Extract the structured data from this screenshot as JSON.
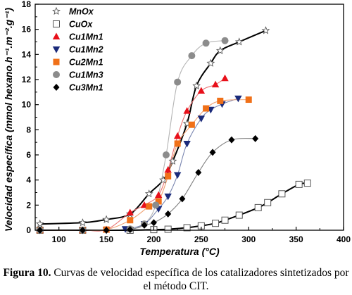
{
  "chart_data": {
    "type": "line",
    "xlabel": "Temperatura (°C)",
    "ylabel": "Velocidad específica (mmol hexano.h⁻¹.m⁻².g⁻¹)",
    "xlim": [
      75,
      400
    ],
    "ylim": [
      0,
      18
    ],
    "xticks": [
      100,
      150,
      200,
      250,
      300,
      350,
      400
    ],
    "yticks": [
      0,
      2,
      4,
      6,
      8,
      10,
      12,
      14,
      16,
      18
    ],
    "legend_position": "top-left",
    "grid": false,
    "series": [
      {
        "name": "MnOx",
        "marker": "star-open",
        "color": "#555555",
        "line": "#000000",
        "points": [
          [
            80,
            0.5
          ],
          [
            125,
            0.6
          ],
          [
            150,
            0.85
          ],
          [
            175,
            1.3
          ],
          [
            195,
            2.9
          ],
          [
            210,
            4.0
          ],
          [
            220,
            5.5
          ],
          [
            235,
            8.5
          ],
          [
            245,
            11.5
          ],
          [
            260,
            13.3
          ],
          [
            270,
            14.3
          ],
          [
            290,
            15.0
          ],
          [
            318,
            15.9
          ]
        ]
      },
      {
        "name": "CuOx",
        "marker": "square-open",
        "color": "#555555",
        "line": "#000000",
        "points": [
          [
            80,
            0
          ],
          [
            125,
            0
          ],
          [
            175,
            0
          ],
          [
            200,
            0.05
          ],
          [
            215,
            0.08
          ],
          [
            235,
            0.2
          ],
          [
            250,
            0.35
          ],
          [
            265,
            0.55
          ],
          [
            275,
            0.8
          ],
          [
            290,
            1.2
          ],
          [
            310,
            1.8
          ],
          [
            320,
            2.2
          ],
          [
            335,
            2.9
          ],
          [
            353,
            3.65
          ],
          [
            362,
            3.75
          ]
        ]
      },
      {
        "name": "Cu1Mn1",
        "marker": "triangle-up",
        "color": "#e8101a",
        "line": "#ea7070",
        "points": [
          [
            80,
            0
          ],
          [
            125,
            0
          ],
          [
            150,
            0.05
          ],
          [
            175,
            1.4
          ],
          [
            190,
            2.0
          ],
          [
            205,
            2.8
          ],
          [
            215,
            4.8
          ],
          [
            225,
            7.5
          ],
          [
            235,
            9.5
          ],
          [
            250,
            11.1
          ],
          [
            265,
            11.6
          ],
          [
            275,
            12.1
          ]
        ]
      },
      {
        "name": "Cu1Mn2",
        "marker": "triangle-down",
        "color": "#1a2a7a",
        "line": "#7a86b0",
        "points": [
          [
            80,
            0
          ],
          [
            125,
            0
          ],
          [
            150,
            0
          ],
          [
            170,
            0.1
          ],
          [
            190,
            0.5
          ],
          [
            205,
            1.7
          ],
          [
            215,
            2.7
          ],
          [
            225,
            4.4
          ],
          [
            235,
            6.9
          ],
          [
            250,
            8.9
          ],
          [
            260,
            9.6
          ],
          [
            272,
            10.05
          ],
          [
            289,
            10.5
          ]
        ]
      },
      {
        "name": "Cu2Mn1",
        "marker": "square",
        "color": "#f07018",
        "line": "#f0a070",
        "points": [
          [
            80,
            0
          ],
          [
            125,
            0
          ],
          [
            150,
            0.05
          ],
          [
            175,
            0.8
          ],
          [
            195,
            1.9
          ],
          [
            205,
            2.3
          ],
          [
            215,
            4.3
          ],
          [
            225,
            6.9
          ],
          [
            240,
            8.4
          ],
          [
            255,
            9.7
          ],
          [
            270,
            10.3
          ],
          [
            300,
            10.4
          ]
        ]
      },
      {
        "name": "Cu1Mn3",
        "marker": "circle",
        "color": "#8c8c8c",
        "line": "#b4b4b4",
        "points": [
          [
            80,
            0
          ],
          [
            125,
            0
          ],
          [
            175,
            0.1
          ],
          [
            190,
            0.5
          ],
          [
            202,
            2.0
          ],
          [
            213,
            6.0
          ],
          [
            225,
            11.8
          ],
          [
            240,
            13.9
          ],
          [
            255,
            14.9
          ],
          [
            275,
            15.1
          ]
        ]
      },
      {
        "name": "Cu3Mn1",
        "marker": "diamond",
        "color": "#000000",
        "line": "#808080",
        "points": [
          [
            80,
            0
          ],
          [
            125,
            0
          ],
          [
            150,
            0
          ],
          [
            175,
            0.05
          ],
          [
            190,
            0.4
          ],
          [
            200,
            0.6
          ],
          [
            215,
            1.3
          ],
          [
            230,
            2.5
          ],
          [
            247,
            4.6
          ],
          [
            262,
            6.2
          ],
          [
            282,
            7.2
          ],
          [
            307,
            7.3
          ]
        ]
      }
    ]
  },
  "caption": {
    "label": "Figura 10.",
    "text": " Curvas de velocidad específica de los catalizadores sintetizados por el método CIT."
  }
}
